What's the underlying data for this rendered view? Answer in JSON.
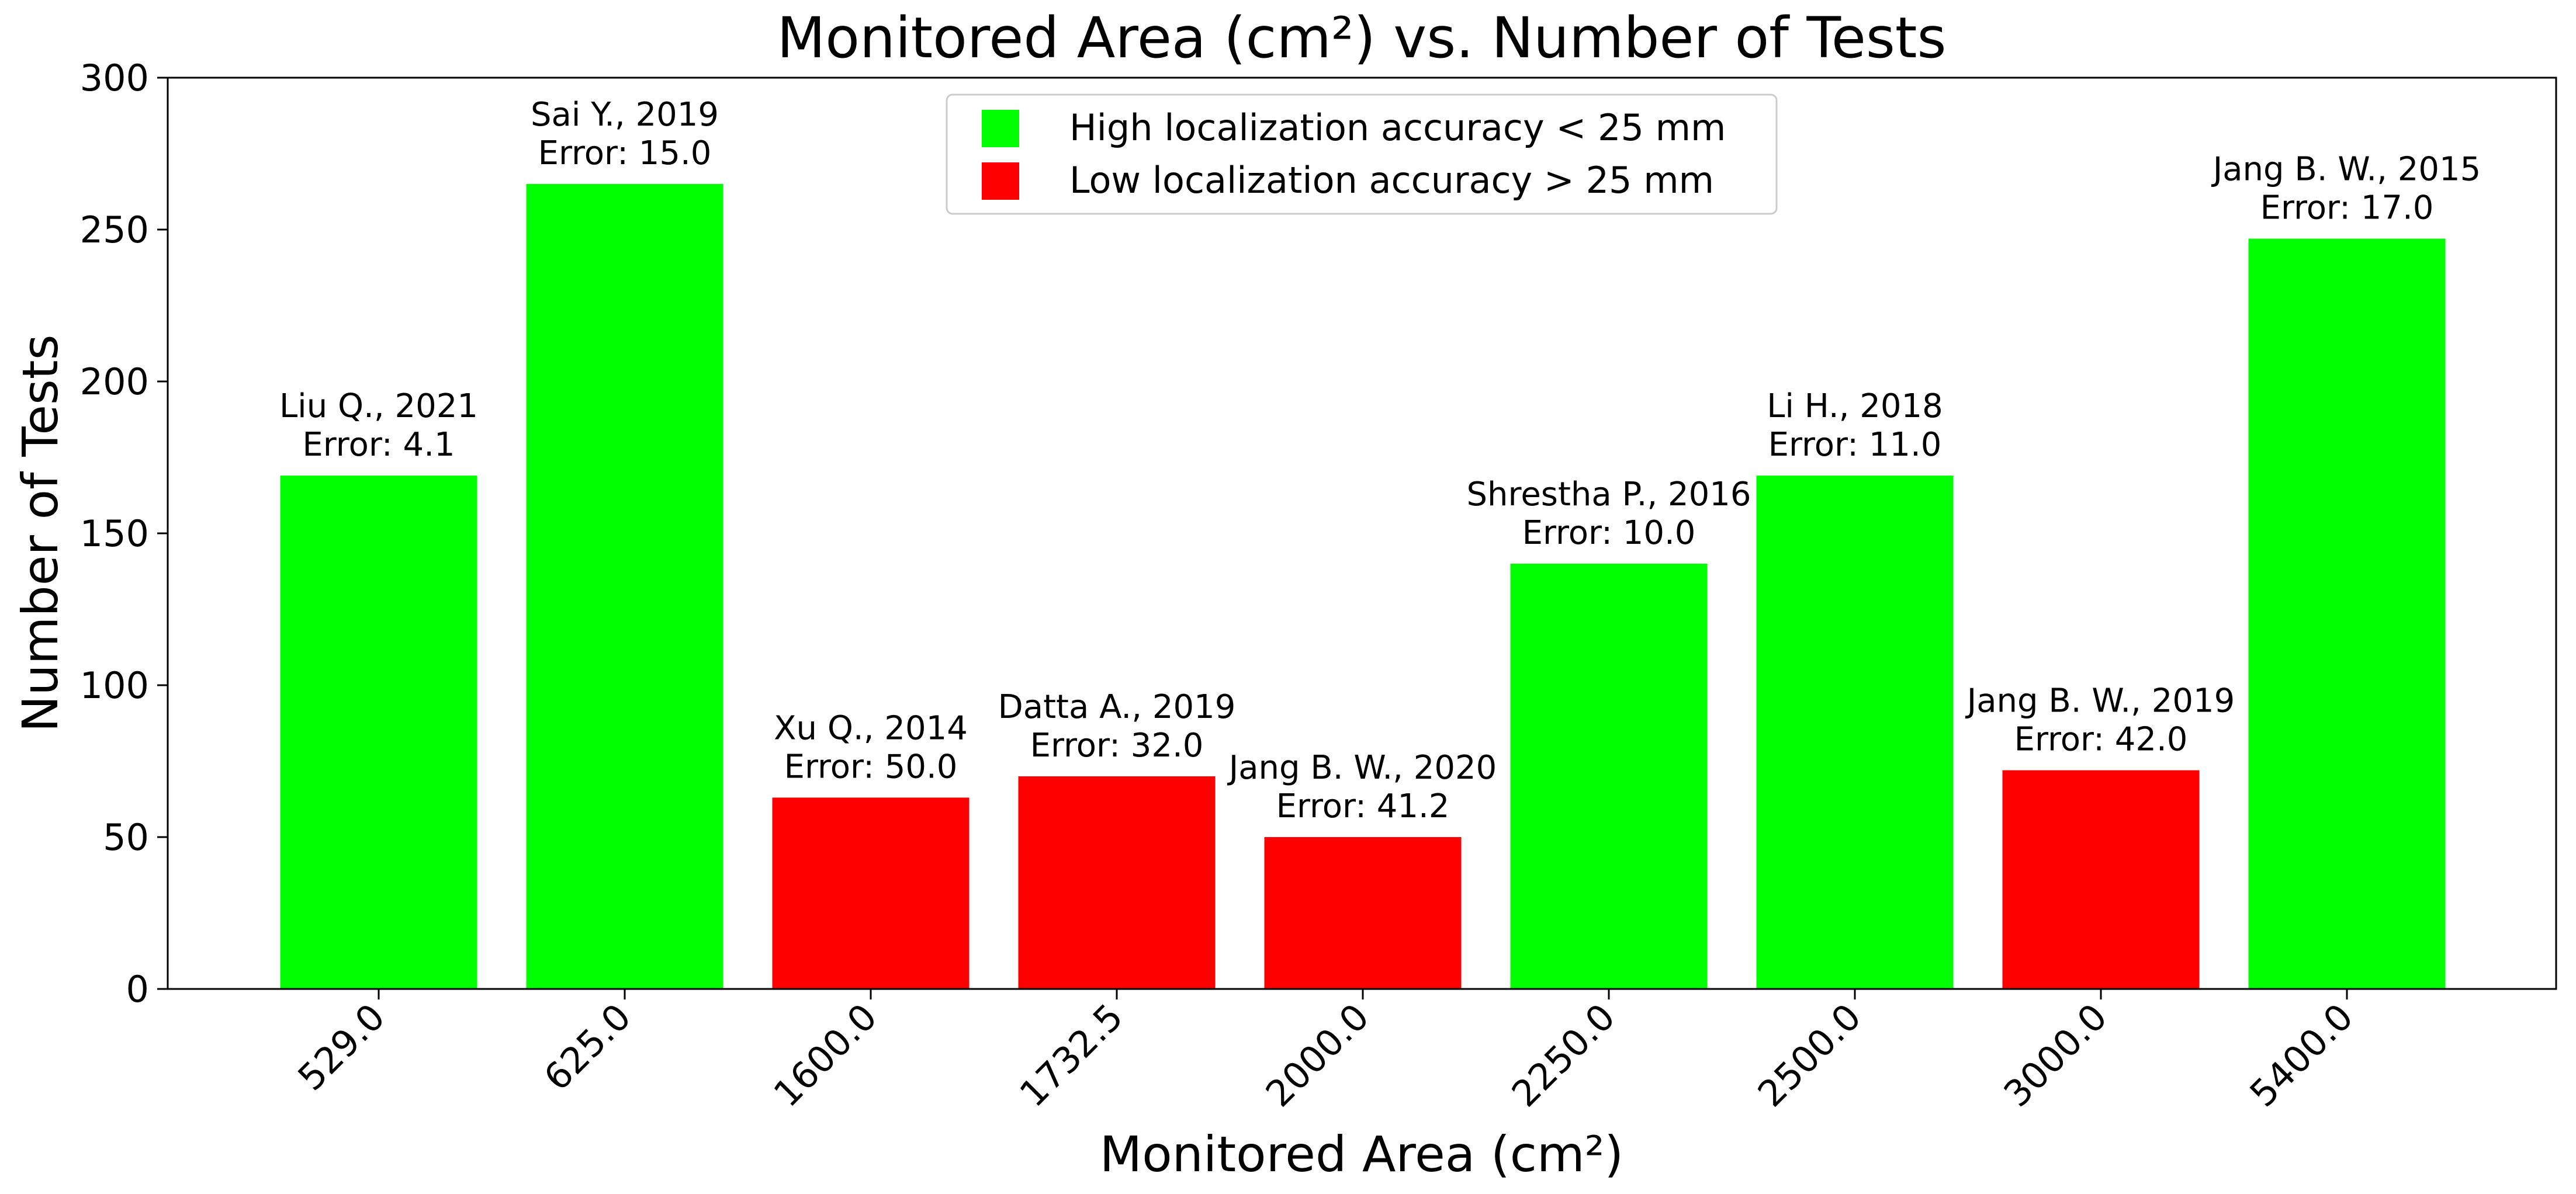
{
  "chart_data": {
    "type": "bar",
    "title": "Monitored Area (cm²) vs. Number of Tests",
    "xlabel": "Monitored Area (cm²)",
    "ylabel": "Number of Tests",
    "ylim": [
      0,
      300
    ],
    "yticks": [
      0,
      50,
      100,
      150,
      200,
      250,
      300
    ],
    "categories": [
      "529.0",
      "625.0",
      "1600.0",
      "1732.5",
      "2000.0",
      "2250.0",
      "2500.0",
      "3000.0",
      "5400.0"
    ],
    "values": [
      169,
      265,
      63,
      70,
      50,
      140,
      169,
      72,
      247
    ],
    "annotations": [
      {
        "author": "Liu Q., 2021",
        "error": "Error: 4.1"
      },
      {
        "author": "Sai Y., 2019",
        "error": "Error: 15.0"
      },
      {
        "author": "Xu Q., 2014",
        "error": "Error: 50.0"
      },
      {
        "author": "Datta A., 2019",
        "error": "Error: 32.0"
      },
      {
        "author": "Jang B. W., 2020",
        "error": "Error: 41.2"
      },
      {
        "author": "Shrestha P., 2016",
        "error": "Error: 10.0"
      },
      {
        "author": "Li H., 2018",
        "error": "Error: 11.0"
      },
      {
        "author": "Jang B. W., 2019",
        "error": "Error: 42.0"
      },
      {
        "author": "Jang B. W., 2015",
        "error": "Error: 17.0"
      }
    ],
    "accuracy_class": [
      "high",
      "high",
      "low",
      "low",
      "low",
      "high",
      "high",
      "low",
      "high"
    ],
    "legend": {
      "position": "upper-center",
      "entries": [
        {
          "key": "high",
          "label": "High localization accuracy < 25 mm",
          "color": "#00ff00"
        },
        {
          "key": "low",
          "label": "Low localization accuracy > 25 mm",
          "color": "#ff0000"
        }
      ]
    },
    "grid": false
  }
}
